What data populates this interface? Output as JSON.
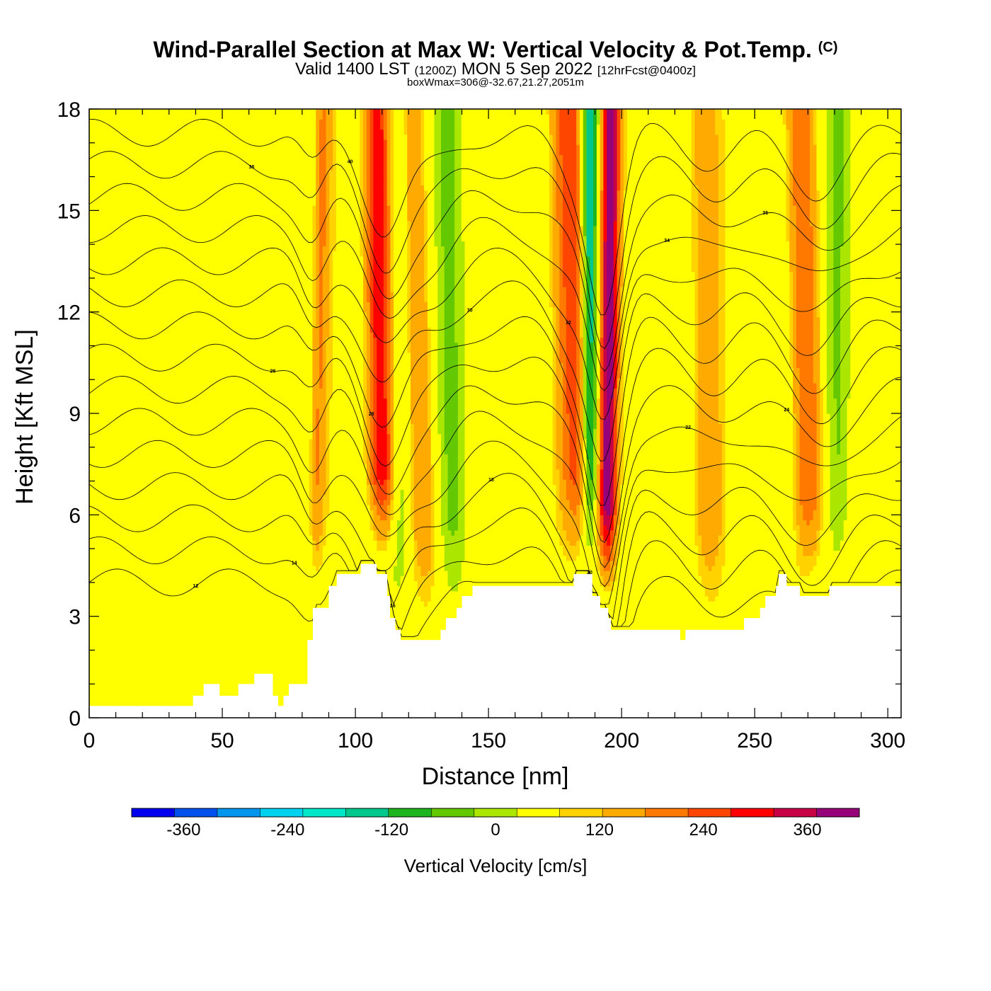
{
  "title": {
    "main": "Wind-Parallel Section at Max W: Vertical Velocity & Pot.Temp.",
    "copyright": "(C)",
    "valid_prefix": "Valid 1400 LST",
    "valid_zulu": "(1200Z)",
    "valid_date": "MON 5 Sep 2022",
    "forecast": "[12hrFcst@0400z]",
    "box_info": "boxWmax=306@-32.67,21.27,2051m"
  },
  "chart_data": {
    "type": "heatmap",
    "xlabel": "Distance [nm]",
    "ylabel": "Height [Kft MSL]",
    "xlim": [
      0,
      305
    ],
    "ylim": [
      0,
      18
    ],
    "x_ticks": [
      "0",
      "50",
      "100",
      "150",
      "200",
      "250",
      "300"
    ],
    "x_tick_values": [
      0,
      50,
      100,
      150,
      200,
      250,
      300
    ],
    "y_ticks": [
      "0",
      "3",
      "6",
      "9",
      "12",
      "15",
      "18"
    ],
    "y_tick_values": [
      0,
      3,
      6,
      9,
      12,
      15,
      18
    ],
    "colorbar": {
      "title": "Vertical Velocity [cm/s]",
      "labels": [
        "-360",
        "-240",
        "-120",
        "0",
        "120",
        "240",
        "360"
      ],
      "label_values": [
        -360,
        -240,
        -120,
        0,
        120,
        240,
        360
      ],
      "min": -420,
      "max": 420,
      "step": 40,
      "colors": [
        "#0000ee",
        "#0050ee",
        "#0096ee",
        "#00d2f0",
        "#00e6c8",
        "#00c88c",
        "#1eb41e",
        "#64c800",
        "#aae600",
        "#ffff00",
        "#ffd200",
        "#ffaa00",
        "#ff7800",
        "#ff4600",
        "#ff0000",
        "#c80046",
        "#960078"
      ]
    },
    "terrain": [
      [
        0,
        0.35
      ],
      [
        39,
        0.35
      ],
      [
        39,
        0.65
      ],
      [
        43,
        0.65
      ],
      [
        43,
        1.0
      ],
      [
        49,
        1.0
      ],
      [
        49,
        0.65
      ],
      [
        56,
        0.65
      ],
      [
        56,
        1.0
      ],
      [
        62,
        1.0
      ],
      [
        62,
        1.3
      ],
      [
        69,
        1.3
      ],
      [
        69,
        0.65
      ],
      [
        71,
        0.65
      ],
      [
        71,
        0.35
      ],
      [
        73,
        0.35
      ],
      [
        73,
        0.65
      ],
      [
        75,
        0.65
      ],
      [
        75,
        1.0
      ],
      [
        82,
        1.0
      ],
      [
        82,
        2.3
      ],
      [
        84,
        2.3
      ],
      [
        84,
        3.25
      ],
      [
        90,
        3.25
      ],
      [
        90,
        3.9
      ],
      [
        93,
        3.9
      ],
      [
        93,
        4.25
      ],
      [
        102,
        4.25
      ],
      [
        102,
        4.55
      ],
      [
        108,
        4.55
      ],
      [
        108,
        4.25
      ],
      [
        112,
        4.25
      ],
      [
        112,
        3.6
      ],
      [
        113,
        3.6
      ],
      [
        113,
        2.95
      ],
      [
        115,
        2.95
      ],
      [
        115,
        2.6
      ],
      [
        117,
        2.6
      ],
      [
        117,
        2.3
      ],
      [
        132,
        2.3
      ],
      [
        132,
        2.6
      ],
      [
        134,
        2.6
      ],
      [
        134,
        2.95
      ],
      [
        138,
        2.95
      ],
      [
        138,
        3.25
      ],
      [
        140,
        3.25
      ],
      [
        140,
        3.6
      ],
      [
        144,
        3.6
      ],
      [
        144,
        3.9
      ],
      [
        182,
        3.9
      ],
      [
        182,
        4.25
      ],
      [
        189,
        4.25
      ],
      [
        189,
        3.6
      ],
      [
        192,
        3.6
      ],
      [
        192,
        3.25
      ],
      [
        195,
        3.25
      ],
      [
        195,
        2.95
      ],
      [
        196,
        2.95
      ],
      [
        196,
        2.6
      ],
      [
        222,
        2.6
      ],
      [
        222,
        2.3
      ],
      [
        224,
        2.3
      ],
      [
        224,
        2.6
      ],
      [
        246,
        2.6
      ],
      [
        246,
        2.95
      ],
      [
        252,
        2.95
      ],
      [
        252,
        3.25
      ],
      [
        254,
        3.25
      ],
      [
        254,
        3.6
      ],
      [
        258,
        3.6
      ],
      [
        258,
        3.9
      ],
      [
        259,
        3.9
      ],
      [
        259,
        4.25
      ],
      [
        262,
        4.25
      ],
      [
        262,
        3.9
      ],
      [
        267,
        3.9
      ],
      [
        267,
        3.6
      ],
      [
        278,
        3.6
      ],
      [
        278,
        3.9
      ],
      [
        305,
        3.9
      ]
    ],
    "updrafts": [
      {
        "x0": 111,
        "x1": 108,
        "w": 5,
        "peak": 220
      },
      {
        "x0": 129,
        "x1": 120,
        "w": 5,
        "peak": 70
      },
      {
        "x0": 194,
        "x1": 196,
        "w": 3.5,
        "peak": 306
      },
      {
        "x0": 186,
        "x1": 180,
        "w": 6,
        "peak": 140
      },
      {
        "x0": 273,
        "x1": 266,
        "w": 7,
        "peak": 130
      },
      {
        "x0": 233,
        "x1": 230,
        "w": 6,
        "peak": 60
      },
      {
        "x0": 84,
        "x1": 88,
        "w": 3,
        "peak": 90
      }
    ],
    "downdrafts": [
      {
        "x0": 188,
        "x1": 188,
        "w": 3,
        "peak": -200
      },
      {
        "x0": 117,
        "x1": 117,
        "w": 4,
        "peak": -70
      },
      {
        "x0": 138,
        "x1": 134,
        "w": 5,
        "peak": -60
      },
      {
        "x0": 264,
        "x1": 262,
        "w": 5,
        "peak": -70
      },
      {
        "x0": 280,
        "x1": 282,
        "w": 5,
        "peak": -60
      }
    ],
    "contour_levels": [
      12,
      14,
      16,
      18,
      20,
      22,
      24,
      26,
      28,
      30,
      32,
      34,
      36,
      38,
      40
    ],
    "contour_labels": [
      "12",
      "14",
      "16",
      "18",
      "20",
      "22",
      "24",
      "26",
      "28",
      "30",
      "32",
      "34",
      "36",
      "38",
      "40"
    ]
  }
}
